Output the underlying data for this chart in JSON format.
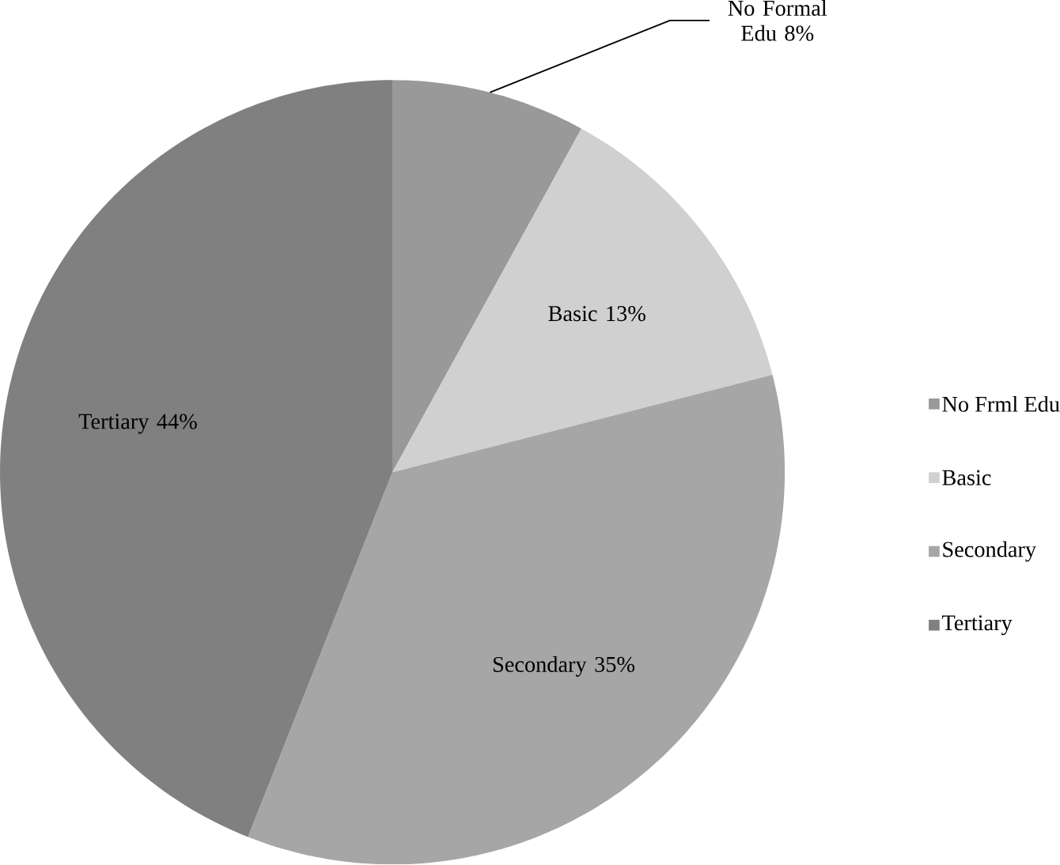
{
  "chart_data": {
    "type": "pie",
    "categories": [
      "No Frml Edu",
      "Basic",
      "Secondary",
      "Tertiary"
    ],
    "values": [
      8,
      13,
      35,
      44
    ],
    "colors": [
      "#999999",
      "#d0d0d0",
      "#a6a6a6",
      "#808080"
    ],
    "value_labels": [
      "No Formal Edu 8%",
      "Basic 13%",
      "Secondary 35%",
      "Tertiary 44%"
    ],
    "legend": "right"
  }
}
